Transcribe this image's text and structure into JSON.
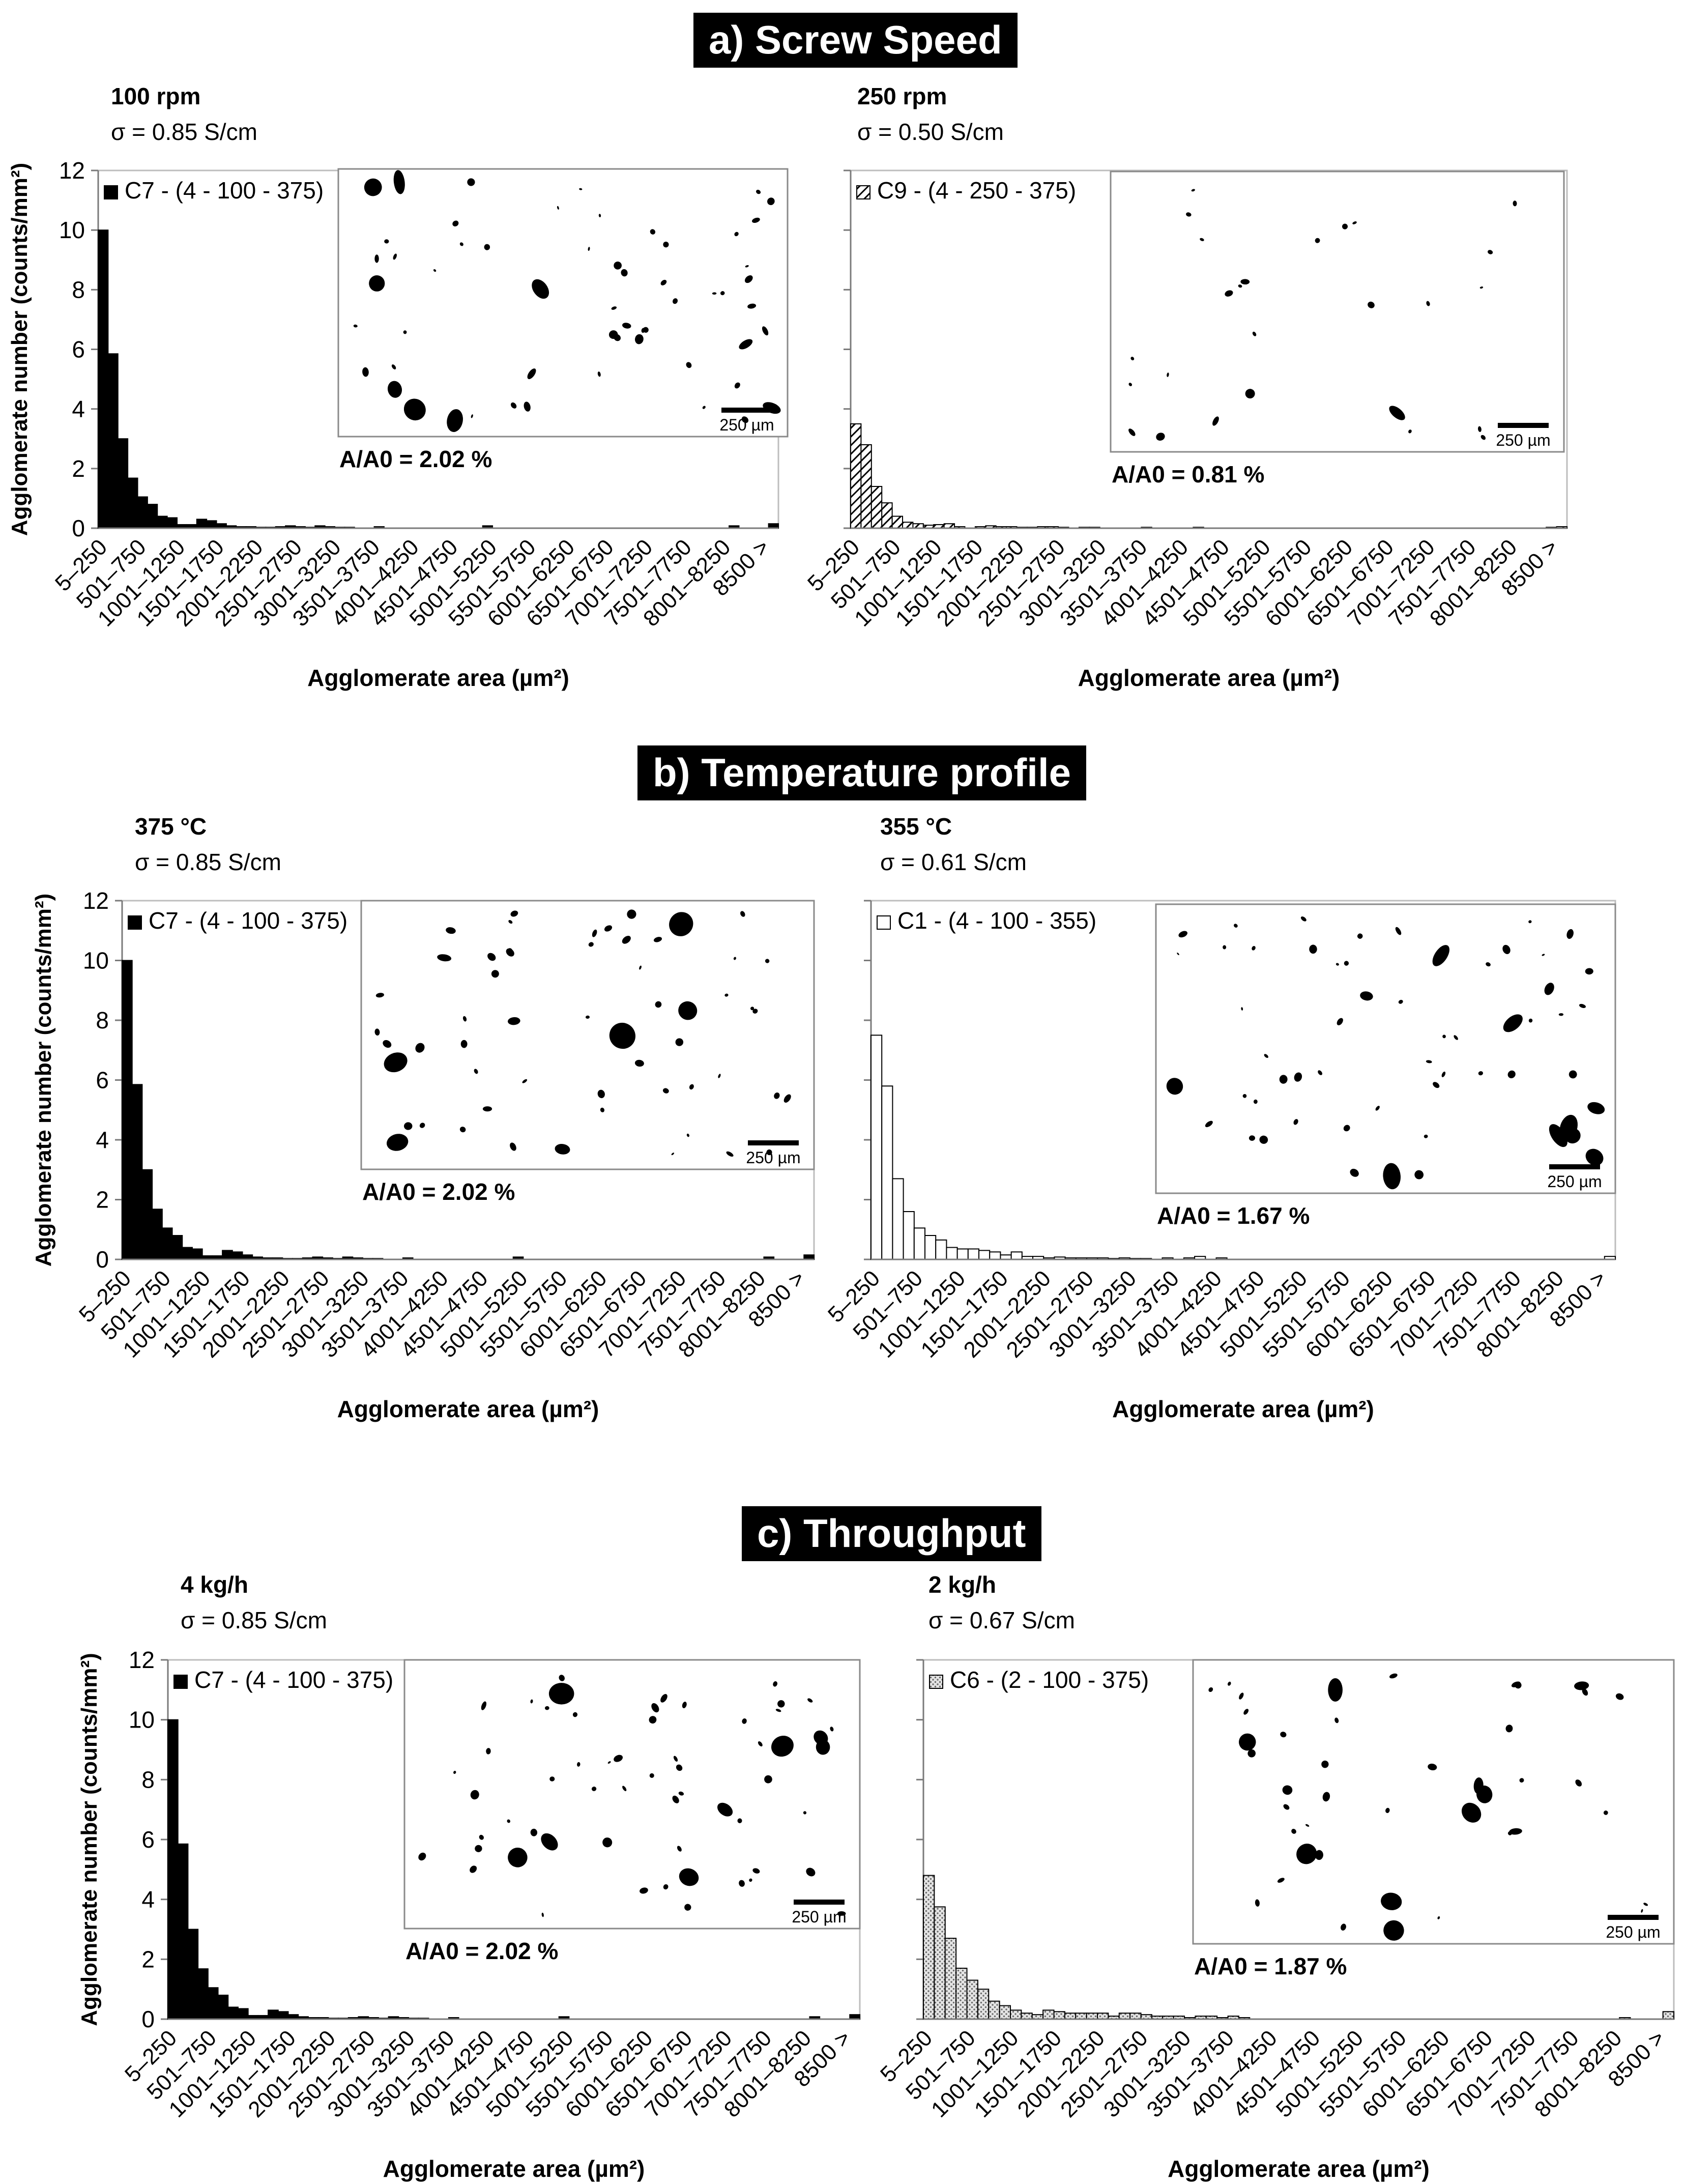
{
  "sections": [
    {
      "title": "a) Screw Speed"
    },
    {
      "title": "b) Temperature profile"
    },
    {
      "title": "c) Throughput"
    }
  ],
  "chart_data": [
    {
      "type": "bar",
      "section": "a) Screw Speed",
      "condition": "100 rpm",
      "conductivity": "σ = 0.85 S/cm",
      "legend": "C7 - (4 - 100 - 375)",
      "fill": "solid",
      "fill_color": "#000000",
      "ratio_label": "A/A0 = 2.02 %",
      "scale_label": "250 µm",
      "xlabel": "Agglomerate area (µm²)",
      "ylabel": "Agglomerate number (counts/mm²)",
      "ylim": [
        0,
        12
      ],
      "yticks": [
        "0",
        "2",
        "4",
        "6",
        "8",
        "10",
        "12"
      ],
      "tick_labels": [
        "5–250",
        "501–750",
        "1001–1250",
        "1501–1750",
        "2001–2250",
        "2501–2750",
        "3001–3250",
        "3501–3750",
        "4001–4250",
        "4501–4750",
        "5001–5250",
        "5501–5750",
        "6001–6250",
        "6501–6750",
        "7001–7250",
        "7501–7750",
        "8001–8250",
        "8500 >"
      ],
      "values": [
        10.0,
        5.85,
        3.0,
        1.68,
        1.05,
        0.8,
        0.4,
        0.35,
        0.12,
        0.12,
        0.3,
        0.25,
        0.15,
        0.08,
        0.05,
        0.05,
        0.03,
        0.03,
        0.05,
        0.08,
        0.05,
        0.03,
        0.08,
        0.05,
        0.03,
        0.03,
        0.0,
        0.0,
        0.05,
        0.0,
        0.0,
        0.0,
        0.0,
        0.0,
        0.0,
        0.0,
        0.0,
        0.0,
        0.0,
        0.08,
        0.0,
        0.0,
        0.0,
        0.0,
        0.0,
        0.0,
        0.0,
        0.0,
        0.0,
        0.0,
        0.0,
        0.0,
        0.0,
        0.0,
        0.0,
        0.0,
        0.0,
        0.0,
        0.0,
        0.0,
        0.0,
        0.0,
        0.0,
        0.0,
        0.08,
        0.0,
        0.0,
        0.0,
        0.15
      ]
    },
    {
      "type": "bar",
      "section": "a) Screw Speed",
      "condition": "250 rpm",
      "conductivity": "σ = 0.50 S/cm",
      "legend": "C9 - (4 - 250 - 375)",
      "fill": "hatch",
      "fill_color": "#000000",
      "ratio_label": "A/A0 = 0.81 %",
      "scale_label": "250 µm",
      "xlabel": "Agglomerate area (µm²)",
      "ylabel": "",
      "ylim": [
        0,
        12
      ],
      "yticks": [],
      "tick_labels": [
        "5–250",
        "501–750",
        "1001–1250",
        "1501–1750",
        "2001–2250",
        "2501–2750",
        "3001–3250",
        "3501–3750",
        "4001–4250",
        "4501–4750",
        "5001–5250",
        "5501–5750",
        "6001–6250",
        "6501–6750",
        "7001–7250",
        "7501–7750",
        "8001–8250",
        "8500 >"
      ],
      "values": [
        3.5,
        2.8,
        1.4,
        0.85,
        0.4,
        0.2,
        0.15,
        0.1,
        0.12,
        0.15,
        0.05,
        0.0,
        0.05,
        0.08,
        0.05,
        0.05,
        0.03,
        0.03,
        0.05,
        0.05,
        0.03,
        0.0,
        0.03,
        0.03,
        0.0,
        0.0,
        0.0,
        0.0,
        0.03,
        0.0,
        0.0,
        0.0,
        0.0,
        0.03,
        0.0,
        0.0,
        0.0,
        0.0,
        0.0,
        0.0,
        0.0,
        0.0,
        0.0,
        0.0,
        0.0,
        0.0,
        0.0,
        0.0,
        0.0,
        0.0,
        0.0,
        0.0,
        0.0,
        0.0,
        0.0,
        0.0,
        0.0,
        0.0,
        0.0,
        0.0,
        0.0,
        0.0,
        0.0,
        0.0,
        0.0,
        0.0,
        0.0,
        0.03,
        0.05
      ]
    },
    {
      "type": "bar",
      "section": "b) Temperature profile",
      "condition": "375 °C",
      "conductivity": "σ = 0.85 S/cm",
      "legend": "C7 - (4 - 100 - 375)",
      "fill": "solid",
      "fill_color": "#000000",
      "ratio_label": "A/A0 = 2.02 %",
      "scale_label": "250 µm",
      "xlabel": "Agglomerate area (µm²)",
      "ylabel": "Agglomerate number (counts/mm²)",
      "ylim": [
        0,
        12
      ],
      "yticks": [
        "0",
        "2",
        "4",
        "6",
        "8",
        "10",
        "12"
      ],
      "tick_labels": [
        "5–250",
        "501–750",
        "1001–1250",
        "1501–1750",
        "2001–2250",
        "2501–2750",
        "3001–3250",
        "3501–3750",
        "4001–4250",
        "4501–4750",
        "5001–5250",
        "5501–5750",
        "6001–6250",
        "6501–6750",
        "7001–7250",
        "7501–7750",
        "8001–8250",
        "8500 >"
      ],
      "values": [
        10.0,
        5.85,
        3.0,
        1.68,
        1.05,
        0.8,
        0.4,
        0.35,
        0.12,
        0.12,
        0.3,
        0.25,
        0.15,
        0.08,
        0.05,
        0.05,
        0.03,
        0.03,
        0.05,
        0.08,
        0.05,
        0.03,
        0.08,
        0.05,
        0.03,
        0.03,
        0.0,
        0.0,
        0.05,
        0.0,
        0.0,
        0.0,
        0.0,
        0.0,
        0.0,
        0.0,
        0.0,
        0.0,
        0.0,
        0.08,
        0.0,
        0.0,
        0.0,
        0.0,
        0.0,
        0.0,
        0.0,
        0.0,
        0.0,
        0.0,
        0.0,
        0.0,
        0.0,
        0.0,
        0.0,
        0.0,
        0.0,
        0.0,
        0.0,
        0.0,
        0.0,
        0.0,
        0.0,
        0.0,
        0.08,
        0.0,
        0.0,
        0.0,
        0.15
      ]
    },
    {
      "type": "bar",
      "section": "b) Temperature profile",
      "condition": "355 °C",
      "conductivity": "σ = 0.61 S/cm",
      "legend": "C1 - (4 - 100 - 355)",
      "fill": "hollow",
      "fill_color": "#ffffff",
      "ratio_label": "A/A0 = 1.67 %",
      "scale_label": "250 µm",
      "xlabel": "Agglomerate area (µm²)",
      "ylabel": "",
      "ylim": [
        0,
        12
      ],
      "yticks": [],
      "tick_labels": [
        "5–250",
        "501–750",
        "1001–1250",
        "1501–1750",
        "2001–2250",
        "2501–2750",
        "3001–3250",
        "3501–3750",
        "4001–4250",
        "4501–4750",
        "5001–5250",
        "5501–5750",
        "6001–6250",
        "6501–6750",
        "7001–7250",
        "7501–7750",
        "8001–8250",
        "8500 >"
      ],
      "values": [
        7.5,
        5.8,
        2.7,
        1.6,
        1.05,
        0.8,
        0.65,
        0.4,
        0.35,
        0.35,
        0.3,
        0.25,
        0.15,
        0.25,
        0.1,
        0.1,
        0.05,
        0.08,
        0.05,
        0.05,
        0.05,
        0.05,
        0.03,
        0.05,
        0.03,
        0.03,
        0.0,
        0.05,
        0.0,
        0.05,
        0.1,
        0.0,
        0.05,
        0.0,
        0.0,
        0.0,
        0.0,
        0.0,
        0.0,
        0.0,
        0.0,
        0.0,
        0.0,
        0.0,
        0.0,
        0.0,
        0.0,
        0.0,
        0.0,
        0.0,
        0.0,
        0.0,
        0.0,
        0.0,
        0.0,
        0.0,
        0.0,
        0.0,
        0.0,
        0.0,
        0.0,
        0.0,
        0.0,
        0.0,
        0.0,
        0.0,
        0.0,
        0.0,
        0.1
      ]
    },
    {
      "type": "bar",
      "section": "c) Throughput",
      "condition": "4 kg/h",
      "conductivity": "σ = 0.85 S/cm",
      "legend": "C7 - (4 - 100 - 375)",
      "fill": "solid",
      "fill_color": "#000000",
      "ratio_label": "A/A0 = 2.02 %",
      "scale_label": "250 µm",
      "xlabel": "Agglomerate area (µm²)",
      "ylabel": "Agglomerate number (counts/mm²)",
      "ylim": [
        0,
        12
      ],
      "yticks": [
        "0",
        "2",
        "4",
        "6",
        "8",
        "10",
        "12"
      ],
      "tick_labels": [
        "5–250",
        "501–750",
        "1001–1250",
        "1501–1750",
        "2001–2250",
        "2501–2750",
        "3001–3250",
        "3501–3750",
        "4001–4250",
        "4501–4750",
        "5001–5250",
        "5501–5750",
        "6001–6250",
        "6501–6750",
        "7001–7250",
        "7501–7750",
        "8001–8250",
        "8500 >"
      ],
      "values": [
        10.0,
        5.85,
        3.0,
        1.68,
        1.05,
        0.8,
        0.4,
        0.35,
        0.12,
        0.12,
        0.3,
        0.25,
        0.15,
        0.08,
        0.05,
        0.05,
        0.03,
        0.03,
        0.05,
        0.08,
        0.05,
        0.03,
        0.08,
        0.05,
        0.03,
        0.03,
        0.0,
        0.0,
        0.05,
        0.0,
        0.0,
        0.0,
        0.0,
        0.0,
        0.0,
        0.0,
        0.0,
        0.0,
        0.0,
        0.08,
        0.0,
        0.0,
        0.0,
        0.0,
        0.0,
        0.0,
        0.0,
        0.0,
        0.0,
        0.0,
        0.0,
        0.0,
        0.0,
        0.0,
        0.0,
        0.0,
        0.0,
        0.0,
        0.0,
        0.0,
        0.0,
        0.0,
        0.0,
        0.0,
        0.08,
        0.0,
        0.0,
        0.0,
        0.15
      ]
    },
    {
      "type": "bar",
      "section": "c) Throughput",
      "condition": "2 kg/h",
      "conductivity": "σ = 0.67 S/cm",
      "legend": "C6 - (2 - 100 - 375)",
      "fill": "dots",
      "fill_color": "#c8c8c8",
      "ratio_label": "A/A0 = 1.87 %",
      "scale_label": "250 µm",
      "xlabel": "Agglomerate area (µm²)",
      "ylabel": "",
      "ylim": [
        0,
        12
      ],
      "yticks": [],
      "tick_labels": [
        "5–250",
        "501–750",
        "1001–1250",
        "1501–1750",
        "2001–2250",
        "2501–2750",
        "3001–3250",
        "3501–3750",
        "4001–4250",
        "4501–4750",
        "5001–5250",
        "5501–5750",
        "6001–6250",
        "6501–6750",
        "7001–7250",
        "7501–7750",
        "8001–8250",
        "8500 >"
      ],
      "values": [
        4.8,
        3.75,
        2.7,
        1.7,
        1.3,
        1.0,
        0.6,
        0.45,
        0.3,
        0.2,
        0.15,
        0.3,
        0.25,
        0.2,
        0.2,
        0.2,
        0.2,
        0.1,
        0.2,
        0.2,
        0.15,
        0.1,
        0.1,
        0.1,
        0.05,
        0.1,
        0.1,
        0.05,
        0.1,
        0.05,
        0.0,
        0.0,
        0.0,
        0.0,
        0.0,
        0.0,
        0.0,
        0.0,
        0.0,
        0.0,
        0.0,
        0.0,
        0.0,
        0.0,
        0.0,
        0.0,
        0.0,
        0.0,
        0.0,
        0.0,
        0.0,
        0.0,
        0.0,
        0.0,
        0.0,
        0.0,
        0.0,
        0.0,
        0.0,
        0.0,
        0.0,
        0.0,
        0.0,
        0.0,
        0.05,
        0.0,
        0.0,
        0.0,
        0.25
      ]
    }
  ]
}
